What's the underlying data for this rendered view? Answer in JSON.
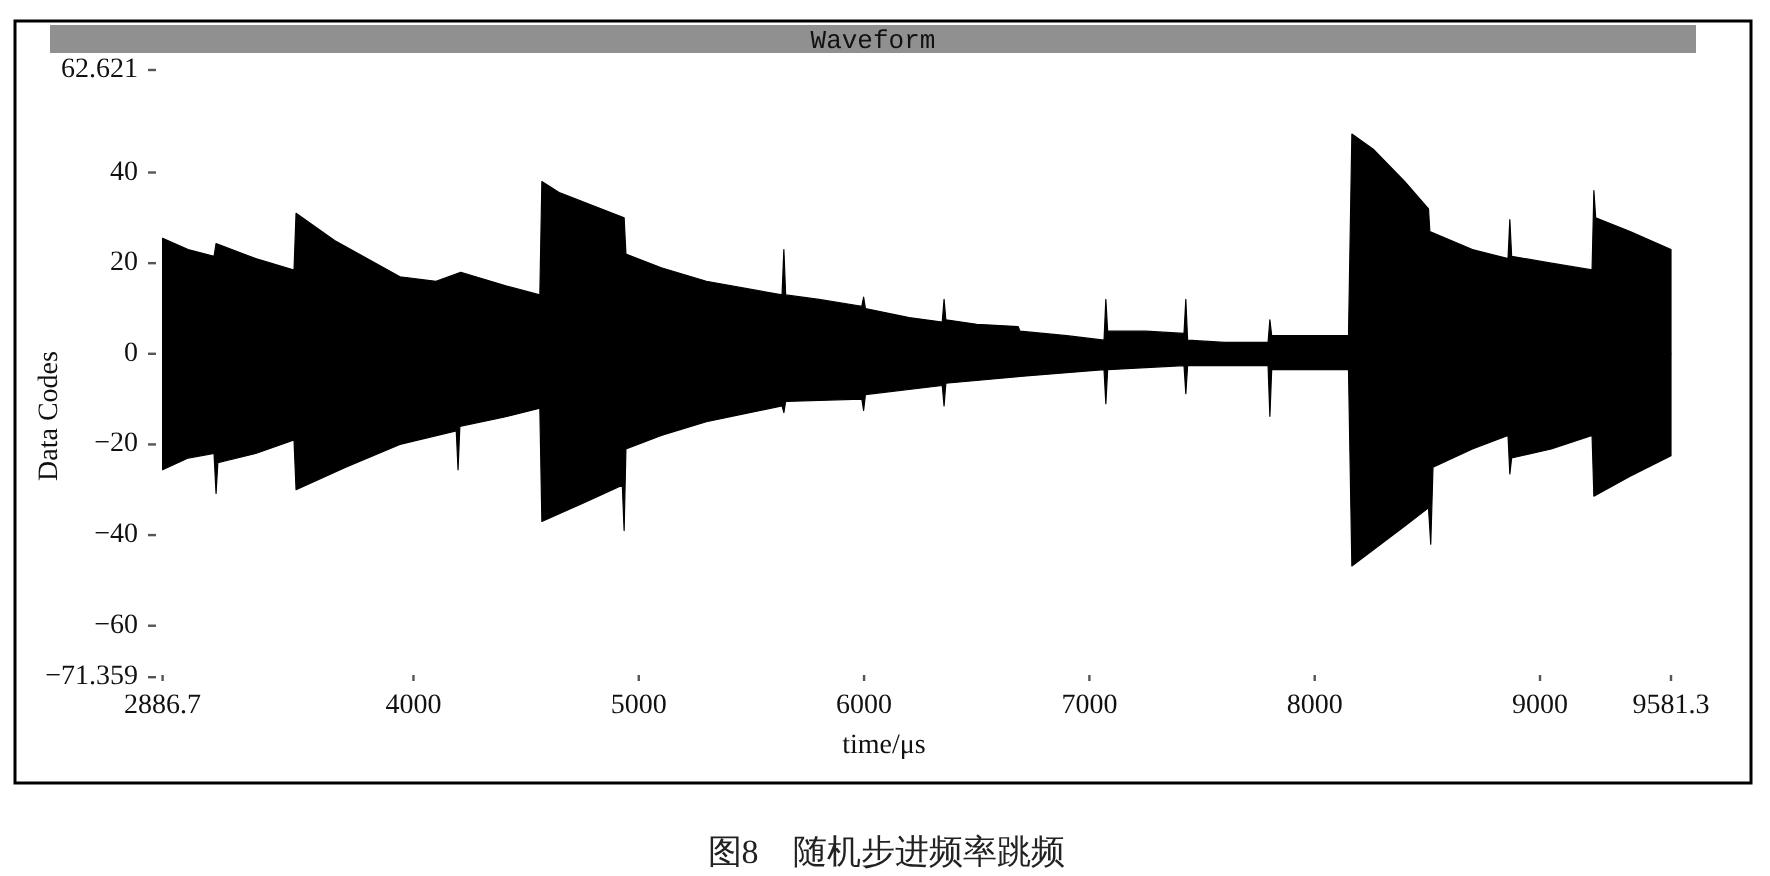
{
  "chart_data": {
    "type": "area",
    "title": "Waveform",
    "xlabel": "time/μs",
    "ylabel": "Data Codes",
    "annotations": [
      "图8　随机步进频率跳频"
    ],
    "xlim": [
      2886.7,
      9581.3
    ],
    "ylim": [
      -71.359,
      62.621
    ],
    "xticks": [
      2886.7,
      4000,
      5000,
      6000,
      7000,
      8000,
      9000,
      9581.3
    ],
    "yticks": [
      -71.359,
      -60,
      -40,
      -20,
      0,
      20,
      40,
      62.621
    ],
    "series": [
      {
        "color": "#000000",
        "x": [
          2886.7,
          3000,
          3115,
          3124,
          3300,
          3470,
          3479,
          3650,
          3940,
          4100,
          4210,
          4410,
          4561,
          4570,
          4650,
          4935,
          4943,
          5100,
          5300,
          5636,
          5644,
          5652,
          5800,
          5990,
          5998,
          6006,
          6200,
          6347,
          6355,
          6363,
          6500,
          6684,
          6692,
          6900,
          7065,
          7073,
          7081,
          7250,
          7420,
          7428,
          7436,
          7600,
          7793,
          7801,
          7809,
          8000,
          8150,
          8165,
          8263,
          8400,
          8505,
          8511,
          8700,
          8858,
          8866,
          8874,
          9050,
          9231,
          9239,
          9247,
          9400,
          9581.3
        ],
        "values": [
          25.5,
          23,
          21.5,
          24.3,
          21,
          18.5,
          31,
          25,
          17,
          16,
          18,
          15,
          13,
          38,
          35.5,
          30,
          22,
          19,
          16,
          13,
          23,
          13,
          12,
          10.5,
          12.5,
          10,
          8,
          7,
          12,
          7.5,
          6.5,
          6,
          5,
          4,
          3,
          12,
          5,
          5,
          4.5,
          12,
          3,
          2.5,
          2.5,
          7.5,
          4,
          4,
          4,
          48.5,
          45,
          38,
          32,
          27,
          23,
          21,
          29.6,
          21.5,
          20,
          18.5,
          36,
          30,
          27,
          23
        ]
      },
      {
        "color": "#000000",
        "x": [
          2886.7,
          3000,
          3115,
          3124,
          3132,
          3300,
          3470,
          3479,
          3700,
          3940,
          4190,
          4198,
          4206,
          4400,
          4561,
          4570,
          4750,
          4927,
          4935,
          4943,
          5100,
          5300,
          5636,
          5644,
          5652,
          5990,
          5998,
          6006,
          6347,
          6355,
          6363,
          6692,
          7065,
          7073,
          7081,
          7420,
          7428,
          7436,
          7793,
          7801,
          7809,
          8150,
          8165,
          8400,
          8505,
          8515,
          8525,
          8700,
          8858,
          8866,
          8874,
          9050,
          9231,
          9239,
          9400,
          9581.3
        ],
        "values": [
          -25.6,
          -23,
          -22,
          -30.8,
          -24,
          -22,
          -19,
          -30,
          -25,
          -20,
          -17,
          -25.6,
          -16,
          -14,
          -12,
          -37,
          -33,
          -29,
          -39,
          -21,
          -18,
          -15,
          -11.5,
          -13,
          -10.5,
          -10,
          -12.5,
          -9,
          -7,
          -11.5,
          -6.5,
          -5,
          -3.5,
          -11,
          -3.5,
          -2.6,
          -8.8,
          -2.6,
          -2.6,
          -13.8,
          -3.5,
          -3.5,
          -46.8,
          -38,
          -34,
          -42,
          -25,
          -21,
          -18,
          -26.5,
          -23,
          -21,
          -18,
          -31.4,
          -27,
          -22.5
        ]
      }
    ]
  }
}
